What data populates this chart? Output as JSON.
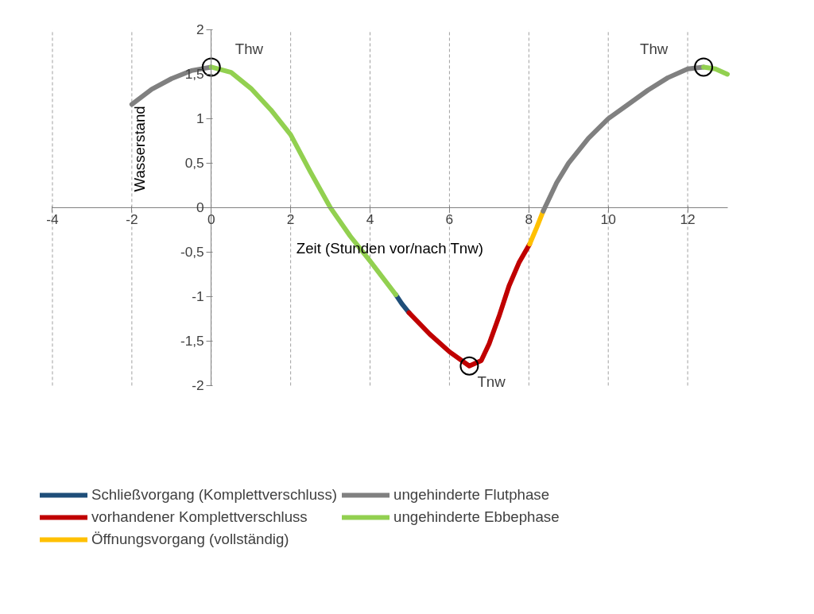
{
  "chart_data": {
    "type": "line",
    "xlabel": "Zeit (Stunden vor/nach Tnw)",
    "ylabel": "Wasserstand",
    "xlim": [
      -4,
      13
    ],
    "ylim": [
      -2,
      2
    ],
    "xticks": [
      -4,
      -2,
      0,
      2,
      4,
      6,
      8,
      10,
      12
    ],
    "yticks": [
      -2,
      {
        "value": -1.5,
        "label": "-1,5"
      },
      -1,
      {
        "value": -0.5,
        "label": "-0,5"
      },
      0,
      {
        "value": 0.5,
        "label": "0,5"
      },
      1,
      {
        "value": 1.5,
        "label": "1,5"
      },
      2
    ],
    "grid": "x",
    "legend": "bottom",
    "line_style": "solid",
    "series": [
      {
        "name": "Schließvorgang (Komplettverschluss)",
        "color": "#1f4e79",
        "x": [
          4.65,
          4.8,
          4.98
        ],
        "values": [
          -0.98,
          -1.08,
          -1.18
        ]
      },
      {
        "name": "vorhandener Komplettverschluss",
        "color": "#c00000",
        "x": [
          4.98,
          5.5,
          6,
          6.5,
          6.8,
          7,
          7.25,
          7.5,
          7.75,
          8.02
        ],
        "values": [
          -1.18,
          -1.42,
          -1.62,
          -1.78,
          -1.72,
          -1.53,
          -1.22,
          -0.88,
          -0.62,
          -0.41
        ]
      },
      {
        "name": "Öffnungsvorgang (vollständig)",
        "color": "#ffc000",
        "x": [
          8.02,
          8.2,
          8.36
        ],
        "values": [
          -0.41,
          -0.22,
          -0.04
        ]
      },
      {
        "name": "ungehinderte Flutphase",
        "color": "#808080",
        "x": [
          -2,
          -1.5,
          -1,
          -0.5,
          0,
          null,
          8.36,
          8.7,
          9,
          9.5,
          10,
          10.5,
          11,
          11.5,
          12,
          12.4
        ],
        "values": [
          1.16,
          1.33,
          1.45,
          1.54,
          1.58,
          null,
          -0.04,
          0.28,
          0.5,
          0.78,
          1.0,
          1.16,
          1.32,
          1.46,
          1.56,
          1.58
        ]
      },
      {
        "name": "ungehinderte Ebbephase",
        "color": "#92d050",
        "x": [
          0,
          0.5,
          1,
          1.5,
          2,
          2.5,
          3,
          3.5,
          4,
          4.65,
          null,
          12.4,
          12.7,
          13
        ],
        "values": [
          1.58,
          1.52,
          1.34,
          1.1,
          0.82,
          0.4,
          0.0,
          -0.32,
          -0.6,
          -0.98,
          null,
          1.58,
          1.56,
          1.5
        ]
      },
      {
        "type": "scatter",
        "marker": "circle",
        "color": "#000000",
        "x": [
          0,
          6.5,
          12.4
        ],
        "values": [
          1.58,
          -1.78,
          1.58
        ]
      }
    ],
    "annotations": [
      {
        "text": "Thw",
        "x": 0,
        "y": 1.58
      },
      {
        "text": "Tnw",
        "x": 6.5,
        "y": -1.78
      },
      {
        "text": "Thw",
        "x": 12.4,
        "y": 1.58
      }
    ]
  }
}
